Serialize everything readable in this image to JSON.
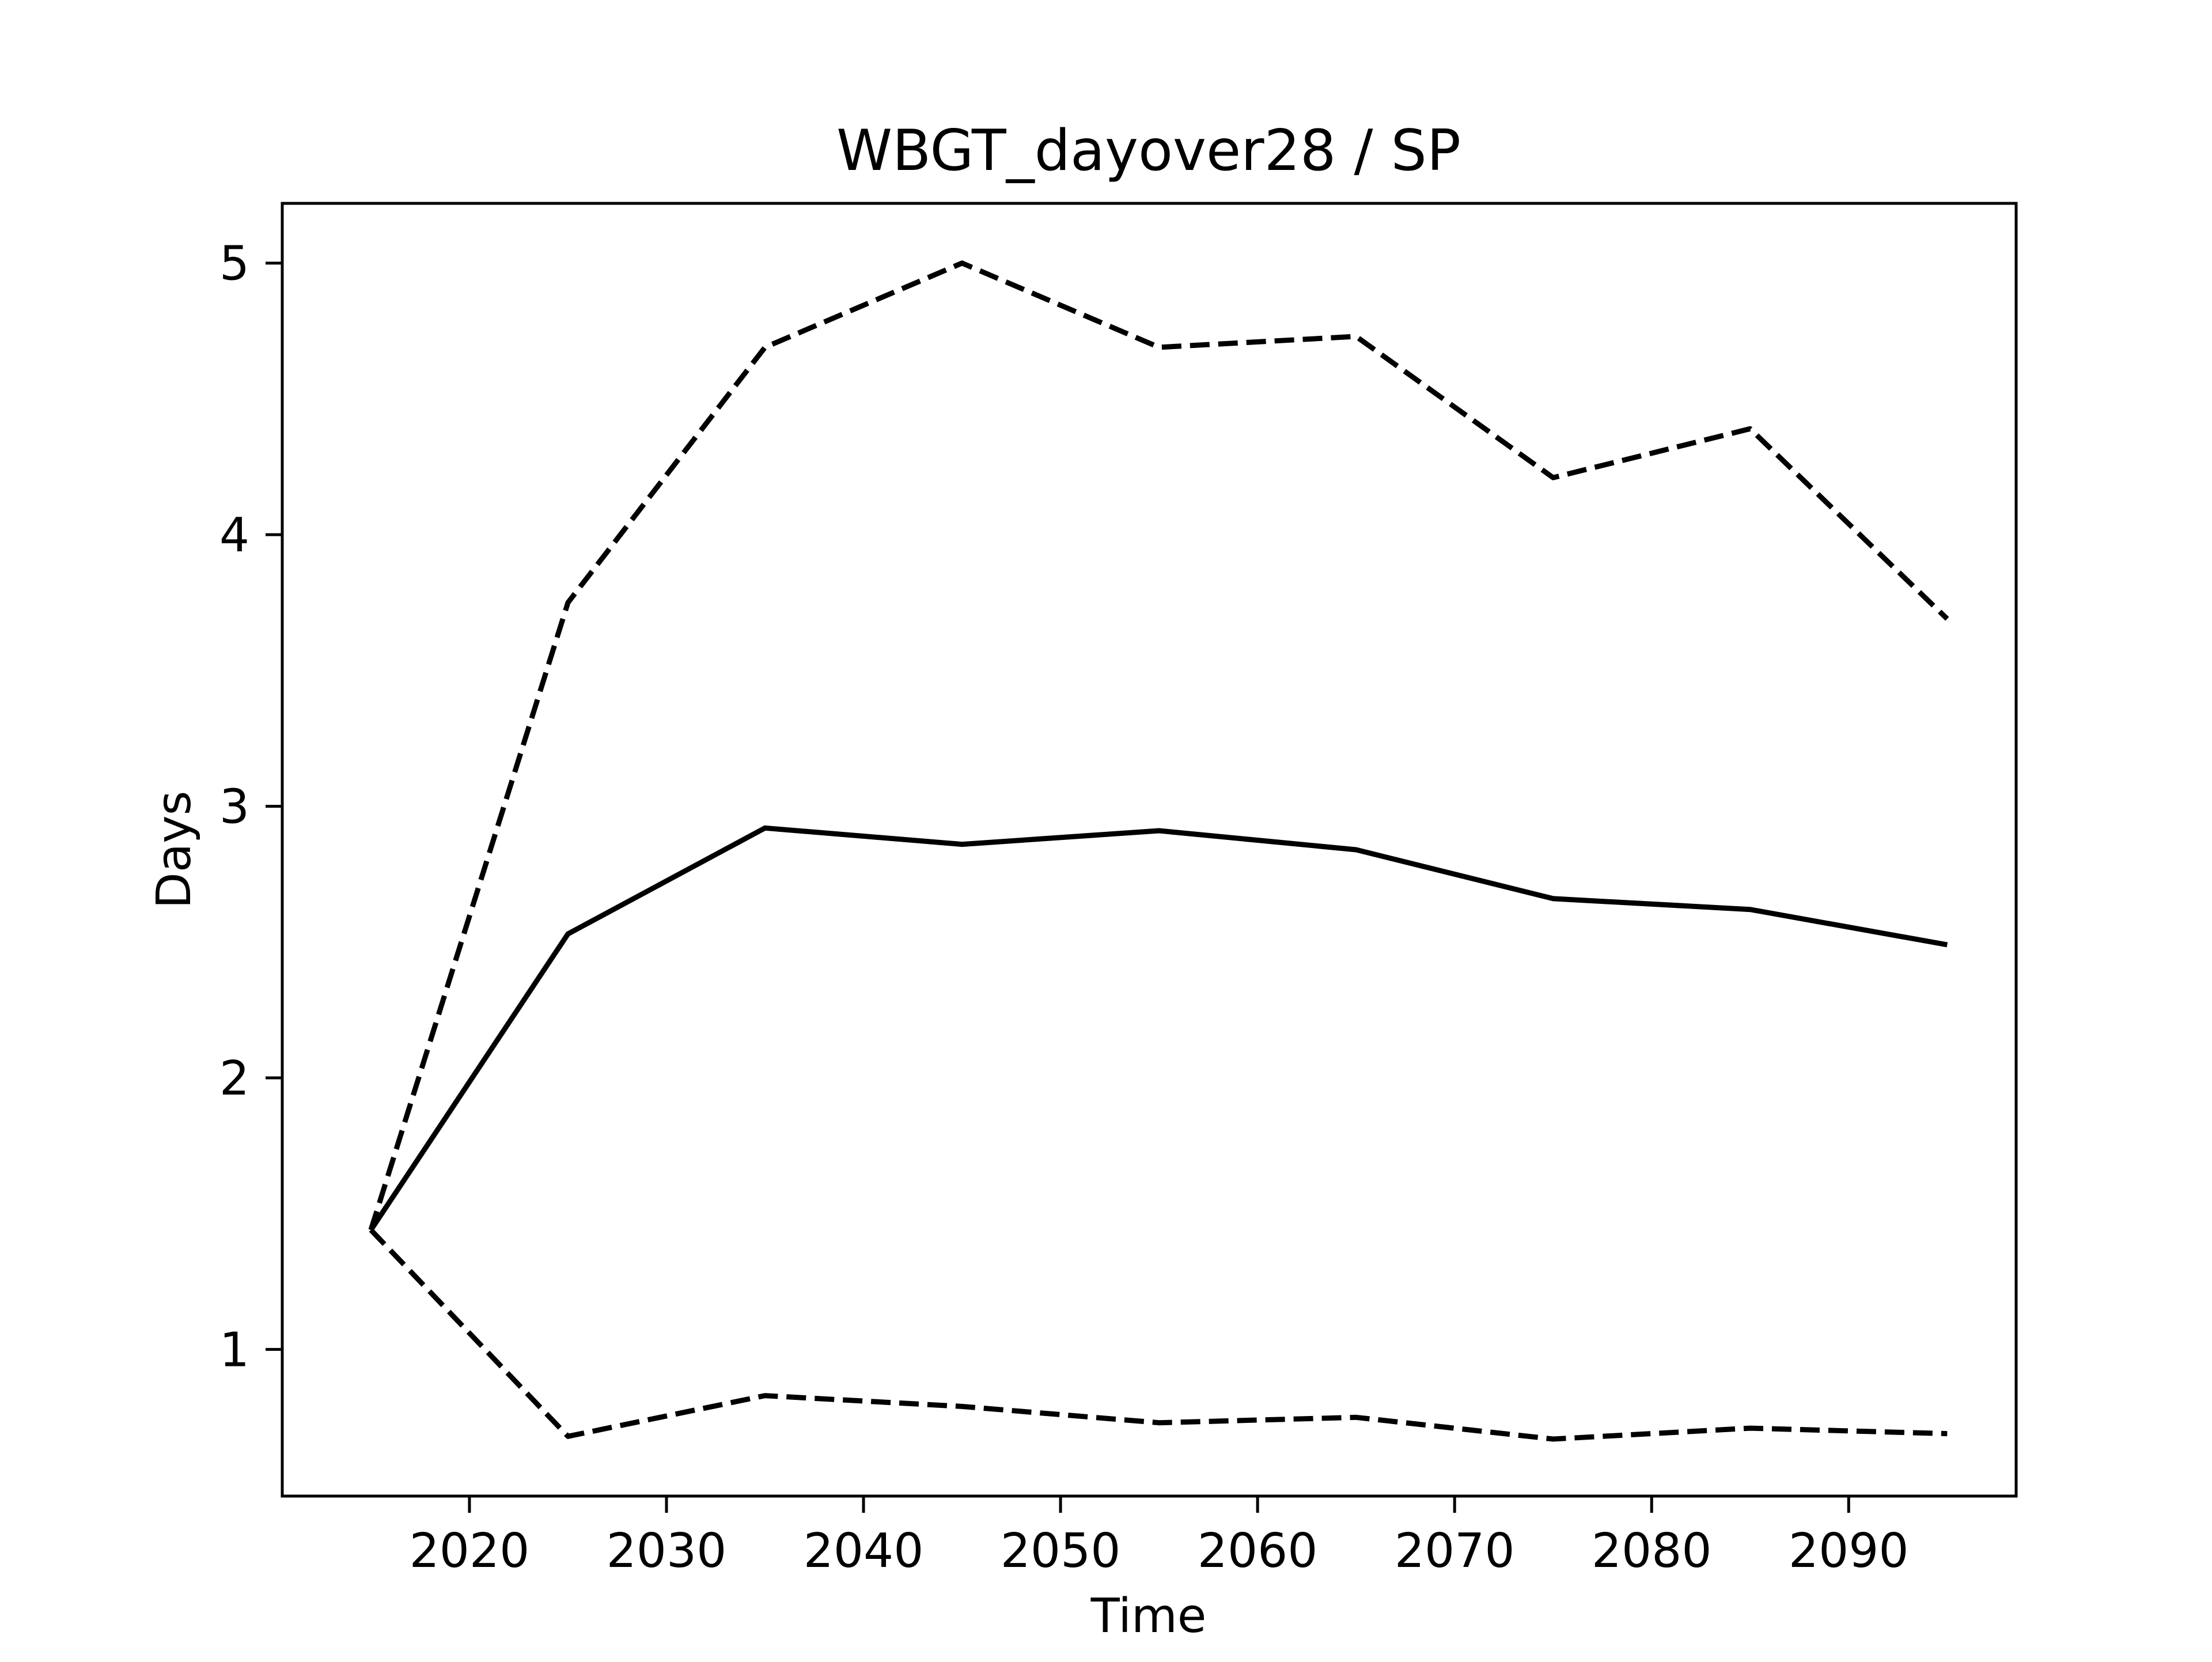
{
  "chart_data": {
    "type": "line",
    "title": "WBGT_dayover28 / SP",
    "xlabel": "Time",
    "ylabel": "Days",
    "xlim": [
      2010.5,
      2098.5
    ],
    "ylim": [
      0.46,
      5.22
    ],
    "xticks": [
      2020,
      2030,
      2040,
      2050,
      2060,
      2070,
      2080,
      2090
    ],
    "yticks": [
      1,
      2,
      3,
      4,
      5
    ],
    "grid": false,
    "x": [
      2015,
      2025,
      2035,
      2045,
      2055,
      2065,
      2075,
      2085,
      2095
    ],
    "series": [
      {
        "style": "solid",
        "color": "#000000",
        "values": [
          1.44,
          2.53,
          2.92,
          2.86,
          2.91,
          2.84,
          2.66,
          2.62,
          2.49
        ]
      },
      {
        "style": "dashed",
        "color": "#000000",
        "values": [
          1.44,
          3.75,
          4.69,
          5.0,
          4.69,
          4.73,
          4.21,
          4.39,
          3.69
        ]
      },
      {
        "style": "dashed",
        "color": "#000000",
        "values": [
          1.44,
          0.68,
          0.83,
          0.79,
          0.73,
          0.75,
          0.67,
          0.71,
          0.69
        ]
      }
    ]
  }
}
